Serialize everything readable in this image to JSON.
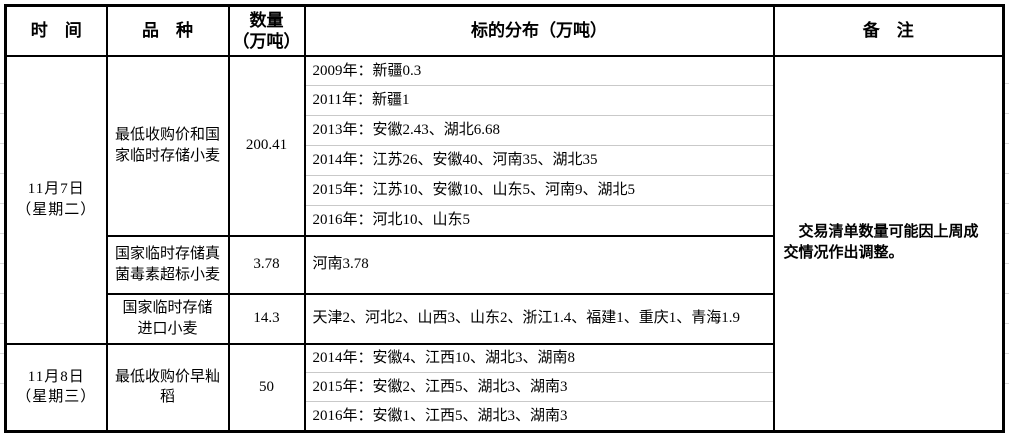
{
  "colors": {
    "border": "#000000",
    "gridline": "#c9c9c9",
    "background": "#ffffff",
    "text": "#000000"
  },
  "table": {
    "header": {
      "time": "时　间",
      "variety": "品　种",
      "quantity": "数量\n（万吨）",
      "distribution": "标的分布（万吨）",
      "remark": "备　注"
    },
    "sections": [
      {
        "date": "11月7日\n（星期二）",
        "groups": [
          {
            "variety": "最低收购价和国\n家临时存储小麦",
            "quantity": "200.41",
            "distribution_rows": [
              "2009年：新疆0.3",
              "2011年：新疆1",
              "2013年：安徽2.43、湖北6.68",
              "2014年：江苏26、安徽40、河南35、湖北35",
              "2015年：江苏10、安徽10、山东5、河南9、湖北5",
              "2016年：河北10、山东5"
            ]
          },
          {
            "variety": "国家临时存储真\n菌毒素超标小麦",
            "quantity": "3.78",
            "distribution_rows": [
              "河南3.78"
            ]
          },
          {
            "variety": "国家临时存储\n进口小麦",
            "quantity": "14.3",
            "distribution_rows": [
              "天津2、河北2、山西3、山东2、浙江1.4、福建1、重庆1、青海1.9"
            ]
          }
        ]
      },
      {
        "date": "11月8日\n（星期三）",
        "groups": [
          {
            "variety": "最低收购价早籼\n稻",
            "quantity": "50",
            "distribution_rows": [
              "2014年：安徽4、江西10、湖北3、湖南8",
              "2015年：安徽2、江西5、湖北3、湖南3",
              "2016年：安徽1、江西5、湖北3、湖南3"
            ]
          }
        ]
      }
    ],
    "remark": "交易清单数量可能因上周成交情况作出调整。"
  }
}
